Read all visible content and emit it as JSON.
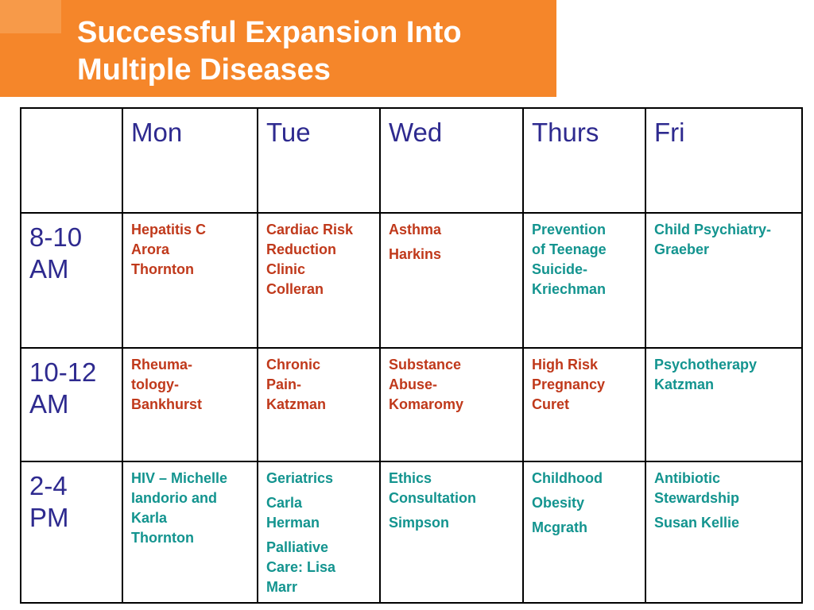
{
  "colors": {
    "title_bg": "#f5862a",
    "header_text": "#2e2a8f",
    "red_text": "#c0391b",
    "teal_text": "#13948f"
  },
  "title": {
    "line1": "Successful Expansion Into",
    "line2": "Multiple Diseases"
  },
  "schedule": {
    "days": [
      "Mon",
      "Tue",
      "Wed",
      "Thurs",
      "Fri"
    ],
    "rows": [
      {
        "time": [
          "8-10",
          "AM"
        ],
        "cells": [
          {
            "color": "red",
            "blocks": [
              [
                "Hepatitis C",
                "Arora",
                "Thornton"
              ]
            ]
          },
          {
            "color": "red",
            "blocks": [
              [
                "Cardiac Risk",
                "Reduction",
                "Clinic",
                "Colleran"
              ]
            ]
          },
          {
            "color": "red",
            "blocks": [
              [
                "Asthma"
              ],
              [
                "Harkins"
              ]
            ]
          },
          {
            "color": "teal",
            "blocks": [
              [
                "Prevention",
                "of Teenage",
                "Suicide-",
                "Kriechman"
              ]
            ]
          },
          {
            "color": "teal",
            "blocks": [
              [
                "Child Psychiatry-",
                "Graeber"
              ]
            ]
          }
        ]
      },
      {
        "time": [
          "10-12",
          "AM"
        ],
        "cells": [
          {
            "color": "red",
            "blocks": [
              [
                "Rheuma-",
                "tology-",
                "Bankhurst"
              ]
            ]
          },
          {
            "color": "red",
            "blocks": [
              [
                "Chronic",
                "Pain-",
                "Katzman"
              ]
            ]
          },
          {
            "color": "red",
            "blocks": [
              [
                "Substance",
                "Abuse-",
                "Komaromy"
              ]
            ]
          },
          {
            "color": "red",
            "blocks": [
              [
                "High Risk",
                "Pregnancy",
                "Curet"
              ]
            ]
          },
          {
            "color": "teal",
            "blocks": [
              [
                "Psychotherapy",
                "Katzman"
              ]
            ]
          }
        ]
      },
      {
        "time": [
          "2-4",
          "PM"
        ],
        "cells": [
          {
            "color": "teal",
            "blocks": [
              [
                "HIV – Michelle",
                "Iandorio and",
                "Karla",
                "Thornton"
              ]
            ]
          },
          {
            "color": "teal",
            "blocks": [
              [
                "Geriatrics"
              ],
              [
                "Carla",
                "Herman"
              ],
              [
                "Palliative",
                "Care:  Lisa",
                "Marr"
              ]
            ]
          },
          {
            "color": "teal",
            "blocks": [
              [
                "Ethics",
                "Consultation"
              ],
              [
                "Simpson"
              ]
            ]
          },
          {
            "color": "teal",
            "blocks": [
              [
                "Childhood"
              ],
              [
                "Obesity"
              ],
              [
                "Mcgrath"
              ]
            ]
          },
          {
            "color": "teal",
            "blocks": [
              [
                "Antibiotic",
                "Stewardship"
              ],
              [
                "Susan Kellie"
              ]
            ]
          }
        ]
      }
    ]
  }
}
